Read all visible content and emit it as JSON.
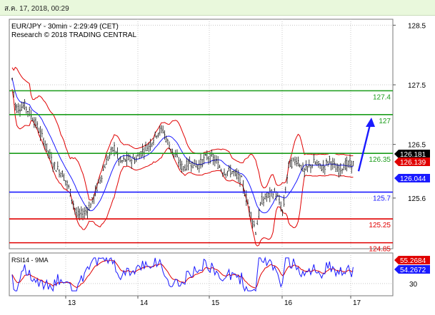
{
  "header": {
    "timestamp": "ส.ค. 17, 2018, 00:29"
  },
  "chart_data": {
    "type": "candlestick",
    "title": "EUR/JPY - 30min - 2:29:49 (CET)",
    "subtitle": "Research © 2018 TRADING CENTRAL",
    "x_ticks": [
      "13",
      "14",
      "15",
      "16",
      "17"
    ],
    "y_ticks": [
      "128.5",
      "127.5",
      "126.5",
      "125.6"
    ],
    "ylim": [
      124.75,
      128.6
    ],
    "levels": [
      {
        "label": "127.4",
        "value": 127.4,
        "color": "#1a9c1a"
      },
      {
        "label": "127",
        "value": 127.0,
        "color": "#1a9c1a"
      },
      {
        "label": "126.35",
        "value": 126.35,
        "color": "#1a9c1a"
      },
      {
        "label": "125.7",
        "value": 125.7,
        "color": "#1a1aff"
      },
      {
        "label": "125.25",
        "value": 125.25,
        "color": "#e00000"
      },
      {
        "label": "124.85",
        "value": 124.85,
        "color": "#e00000"
      }
    ],
    "price_badges": [
      {
        "label": "126.181",
        "value": 126.181,
        "color": "#000000"
      },
      {
        "label": "126.139",
        "value": 126.139,
        "color": "#e00000"
      },
      {
        "label": "126.044",
        "value": 126.044,
        "color": "#1a1aff"
      }
    ],
    "arrow": {
      "from": 126.05,
      "to": 126.95,
      "color": "#1a1aff"
    },
    "rsi": {
      "label": "RSI14 - 9MA",
      "ylim": [
        10,
        80
      ],
      "ticks": [
        "30"
      ],
      "badges": [
        {
          "label": "55.2684",
          "value": 55.2684,
          "color": "#e00000"
        },
        {
          "label": "54.2672",
          "value": 54.2672,
          "color": "#1a1aff"
        }
      ]
    },
    "colors": {
      "candle": "#111111",
      "bollinger": "#e00000",
      "ma": "#1a1aff",
      "grid": "#c8c8c8"
    }
  }
}
